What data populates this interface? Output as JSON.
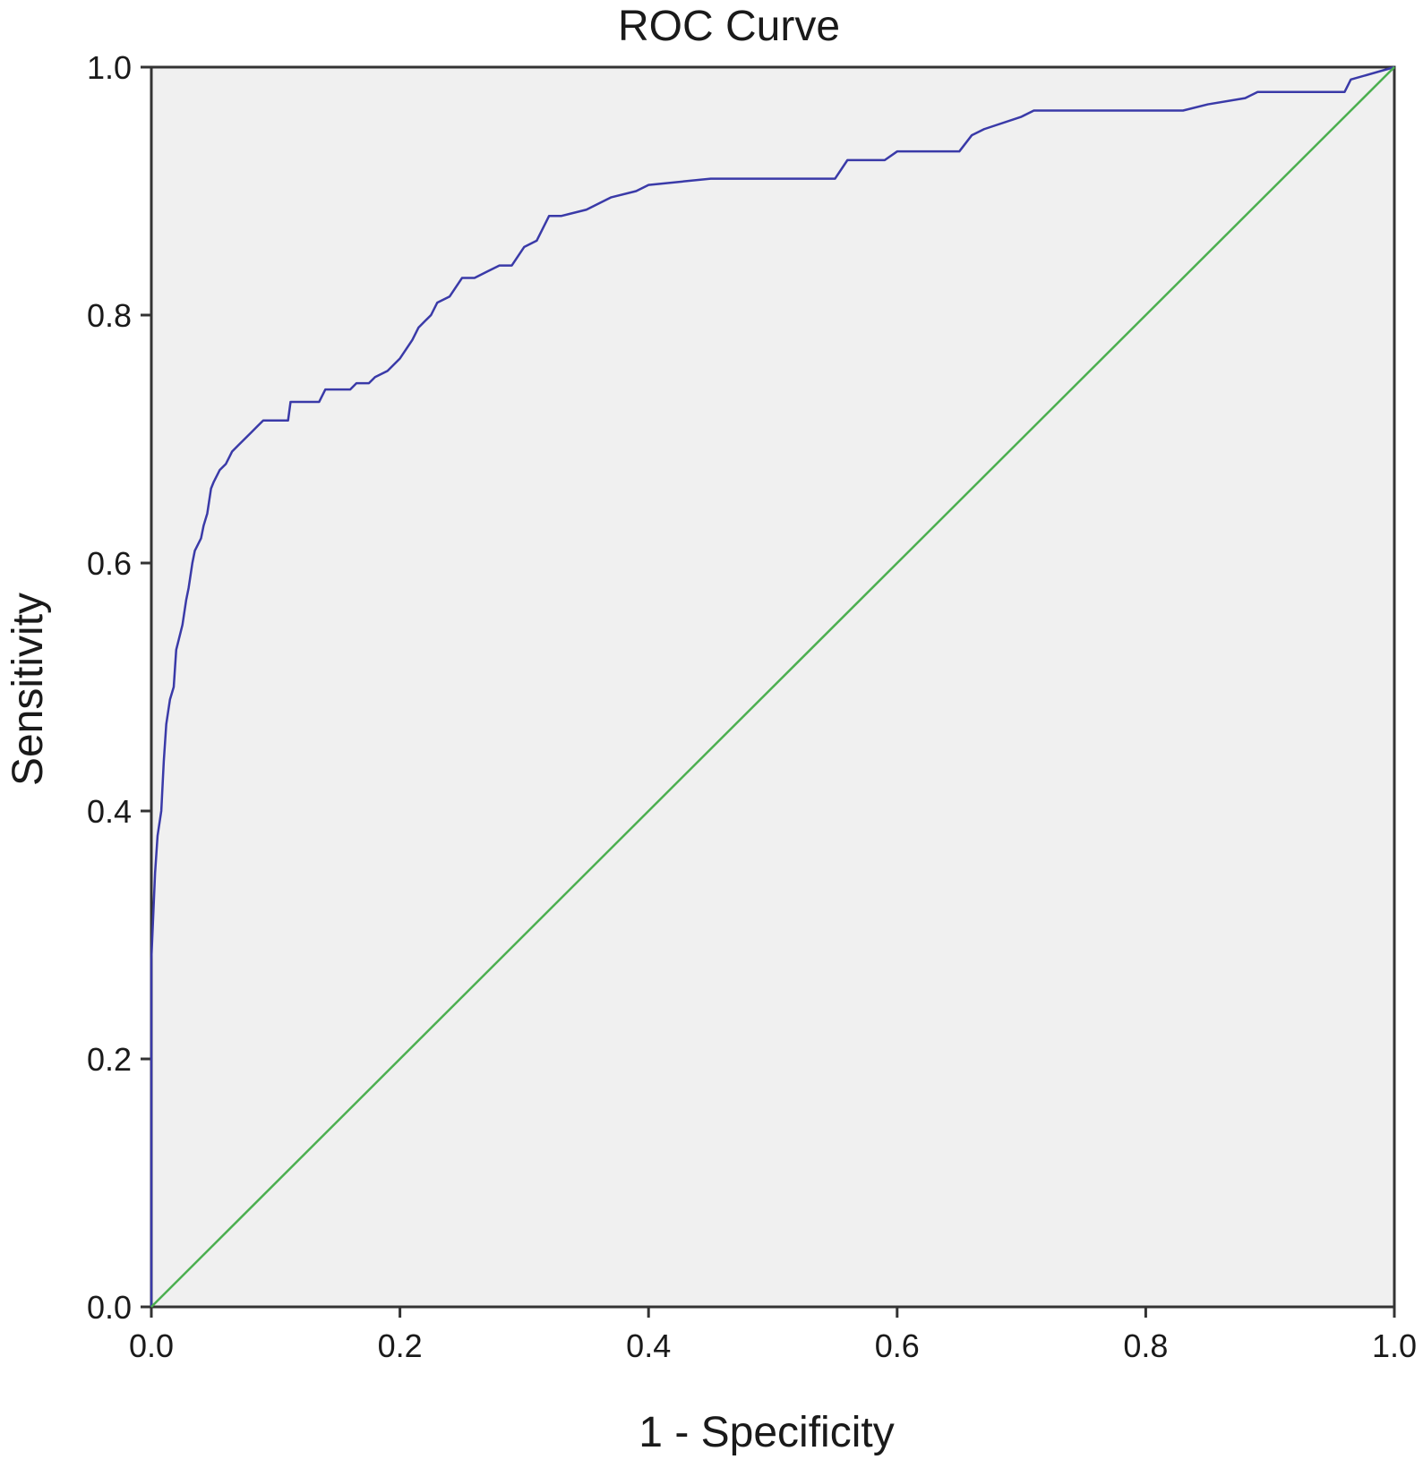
{
  "chart_data": {
    "type": "line",
    "title": "ROC Curve",
    "xlabel": "1 - Specificity",
    "ylabel": "Sensitivity",
    "xlim": [
      0,
      1
    ],
    "ylim": [
      0,
      1
    ],
    "x_ticks": [
      "0.0",
      "0.2",
      "0.4",
      "0.6",
      "0.8",
      "1.0"
    ],
    "y_ticks": [
      "0.0",
      "0.2",
      "0.4",
      "0.6",
      "0.8",
      "1.0"
    ],
    "grid": false,
    "legend": "none",
    "plot_background": "#f0f0f0",
    "series": [
      {
        "color": "#3a3aa8",
        "points": [
          [
            0.0,
            0.0
          ],
          [
            0.0,
            0.28
          ],
          [
            0.003,
            0.35
          ],
          [
            0.005,
            0.38
          ],
          [
            0.008,
            0.4
          ],
          [
            0.01,
            0.44
          ],
          [
            0.012,
            0.47
          ],
          [
            0.015,
            0.49
          ],
          [
            0.018,
            0.5
          ],
          [
            0.02,
            0.53
          ],
          [
            0.025,
            0.55
          ],
          [
            0.028,
            0.57
          ],
          [
            0.03,
            0.58
          ],
          [
            0.033,
            0.6
          ],
          [
            0.035,
            0.61
          ],
          [
            0.04,
            0.62
          ],
          [
            0.042,
            0.63
          ],
          [
            0.045,
            0.64
          ],
          [
            0.048,
            0.66
          ],
          [
            0.05,
            0.665
          ],
          [
            0.055,
            0.675
          ],
          [
            0.06,
            0.68
          ],
          [
            0.065,
            0.69
          ],
          [
            0.07,
            0.695
          ],
          [
            0.075,
            0.7
          ],
          [
            0.08,
            0.705
          ],
          [
            0.085,
            0.71
          ],
          [
            0.09,
            0.715
          ],
          [
            0.1,
            0.715
          ],
          [
            0.11,
            0.715
          ],
          [
            0.112,
            0.73
          ],
          [
            0.12,
            0.73
          ],
          [
            0.135,
            0.73
          ],
          [
            0.14,
            0.74
          ],
          [
            0.16,
            0.74
          ],
          [
            0.165,
            0.745
          ],
          [
            0.175,
            0.745
          ],
          [
            0.18,
            0.75
          ],
          [
            0.19,
            0.755
          ],
          [
            0.2,
            0.765
          ],
          [
            0.21,
            0.78
          ],
          [
            0.215,
            0.79
          ],
          [
            0.22,
            0.795
          ],
          [
            0.225,
            0.8
          ],
          [
            0.23,
            0.81
          ],
          [
            0.24,
            0.815
          ],
          [
            0.25,
            0.83
          ],
          [
            0.26,
            0.83
          ],
          [
            0.27,
            0.835
          ],
          [
            0.28,
            0.84
          ],
          [
            0.29,
            0.84
          ],
          [
            0.3,
            0.855
          ],
          [
            0.31,
            0.86
          ],
          [
            0.315,
            0.87
          ],
          [
            0.32,
            0.88
          ],
          [
            0.33,
            0.88
          ],
          [
            0.35,
            0.885
          ],
          [
            0.37,
            0.895
          ],
          [
            0.39,
            0.9
          ],
          [
            0.4,
            0.905
          ],
          [
            0.45,
            0.91
          ],
          [
            0.55,
            0.91
          ],
          [
            0.56,
            0.925
          ],
          [
            0.59,
            0.925
          ],
          [
            0.6,
            0.932
          ],
          [
            0.65,
            0.932
          ],
          [
            0.66,
            0.945
          ],
          [
            0.67,
            0.95
          ],
          [
            0.7,
            0.96
          ],
          [
            0.71,
            0.965
          ],
          [
            0.83,
            0.965
          ],
          [
            0.85,
            0.97
          ],
          [
            0.88,
            0.975
          ],
          [
            0.89,
            0.98
          ],
          [
            0.96,
            0.98
          ],
          [
            0.965,
            0.99
          ],
          [
            1.0,
            1.0
          ]
        ]
      },
      {
        "color": "#4caf50",
        "points": [
          [
            0.0,
            0.0
          ],
          [
            1.0,
            1.0
          ]
        ]
      }
    ]
  }
}
